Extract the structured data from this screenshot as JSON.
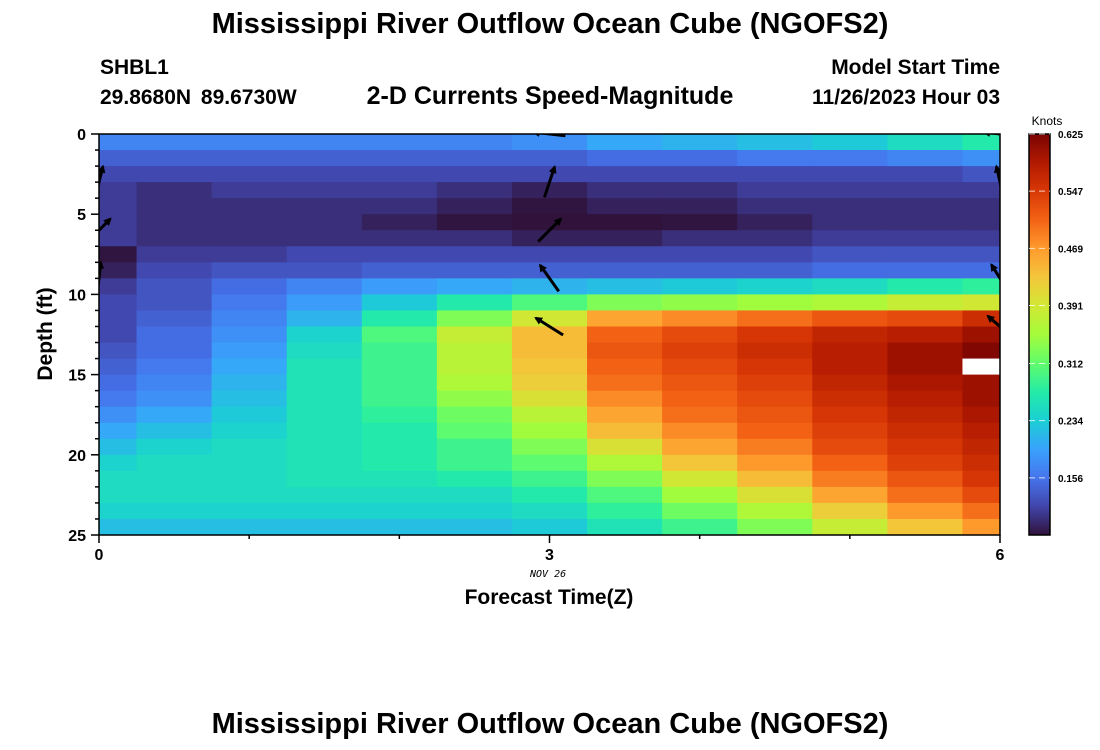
{
  "header": {
    "title": "Mississippi River Outflow Ocean Cube (NGOFS2)",
    "station_id": "SHBL1",
    "coordinates": "29.8680N  89.6730W",
    "subtitle": "2-D Currents Speed-Magnitude",
    "start_label": "Model Start Time",
    "start_value": "11/26/2023 Hour 03"
  },
  "footer": {
    "title": "Mississippi River Outflow Ocean Cube (NGOFS2)"
  },
  "colors": {
    "scale": [
      "#30123b",
      "#4145ab",
      "#4675ed",
      "#39a2fc",
      "#1bcfd4",
      "#24eca6",
      "#61fc6c",
      "#a4fc3b",
      "#d1e834",
      "#f3c63a",
      "#fe9b2d",
      "#f36315",
      "#d93806",
      "#b11901",
      "#7a0402"
    ]
  },
  "chart_data": {
    "type": "heatmap",
    "title": "2-D Currents Speed-Magnitude",
    "xlabel": "Forecast Time(Z)",
    "ylabel": "Depth (ft)",
    "date_label": "NOV 26",
    "xlim": [
      0,
      6
    ],
    "ylim": [
      0,
      25
    ],
    "x_ticks": [
      0,
      3,
      6
    ],
    "y_ticks": [
      0,
      5,
      10,
      15,
      20,
      25
    ],
    "colorbar": {
      "title": "Knots",
      "range": [
        0.078,
        0.625
      ],
      "ticks": [
        0.156,
        0.234,
        0.312,
        0.391,
        0.469,
        0.547,
        0.625
      ],
      "tick_labels": [
        "0.156",
        "0.234",
        "0.312",
        "0.391",
        "0.469",
        "0.547",
        "0.625"
      ]
    },
    "time_columns": [
      0,
      0.5,
      1,
      1.5,
      2,
      2.5,
      3,
      3.5,
      4,
      4.5,
      5,
      5.5,
      6
    ],
    "depth_rows_ft": [
      0.5,
      1.5,
      2.5,
      3.5,
      4.5,
      5.5,
      6.5,
      7.5,
      8.5,
      9.5,
      10.5,
      11.5,
      12.5,
      13.5,
      14.5,
      15.5,
      16.5,
      17.5,
      18.5,
      19.5,
      20.5,
      21.5,
      22.5,
      23.5,
      24.5
    ],
    "speed_knots": [
      [
        0.17,
        0.17,
        0.17,
        0.17,
        0.17,
        0.17,
        0.18,
        0.2,
        0.21,
        0.22,
        0.23,
        0.25,
        0.27
      ],
      [
        0.14,
        0.14,
        0.14,
        0.14,
        0.14,
        0.14,
        0.14,
        0.15,
        0.15,
        0.16,
        0.16,
        0.17,
        0.18
      ],
      [
        0.12,
        0.12,
        0.12,
        0.12,
        0.12,
        0.12,
        0.12,
        0.12,
        0.12,
        0.12,
        0.12,
        0.12,
        0.13
      ],
      [
        0.11,
        0.1,
        0.11,
        0.11,
        0.11,
        0.1,
        0.09,
        0.1,
        0.1,
        0.11,
        0.11,
        0.11,
        0.11
      ],
      [
        0.11,
        0.1,
        0.1,
        0.1,
        0.1,
        0.09,
        0.08,
        0.09,
        0.09,
        0.1,
        0.1,
        0.1,
        0.1
      ],
      [
        0.11,
        0.1,
        0.1,
        0.1,
        0.09,
        0.08,
        0.07,
        0.07,
        0.08,
        0.09,
        0.1,
        0.1,
        0.1
      ],
      [
        0.11,
        0.1,
        0.1,
        0.1,
        0.1,
        0.1,
        0.09,
        0.09,
        0.1,
        0.1,
        0.11,
        0.11,
        0.11
      ],
      [
        0.08,
        0.11,
        0.11,
        0.12,
        0.12,
        0.12,
        0.12,
        0.12,
        0.12,
        0.12,
        0.13,
        0.13,
        0.13
      ],
      [
        0.09,
        0.12,
        0.13,
        0.13,
        0.14,
        0.14,
        0.14,
        0.14,
        0.14,
        0.14,
        0.15,
        0.15,
        0.15
      ],
      [
        0.11,
        0.13,
        0.15,
        0.17,
        0.19,
        0.2,
        0.21,
        0.22,
        0.23,
        0.24,
        0.25,
        0.27,
        0.28
      ],
      [
        0.12,
        0.13,
        0.16,
        0.19,
        0.23,
        0.27,
        0.3,
        0.33,
        0.34,
        0.35,
        0.36,
        0.38,
        0.39
      ],
      [
        0.12,
        0.14,
        0.17,
        0.21,
        0.27,
        0.33,
        0.39,
        0.46,
        0.48,
        0.5,
        0.52,
        0.53,
        0.56
      ],
      [
        0.12,
        0.15,
        0.18,
        0.24,
        0.3,
        0.38,
        0.44,
        0.51,
        0.53,
        0.55,
        0.57,
        0.58,
        0.6
      ],
      [
        0.13,
        0.15,
        0.19,
        0.25,
        0.29,
        0.37,
        0.44,
        0.52,
        0.54,
        0.56,
        0.58,
        0.6,
        0.62
      ],
      [
        0.14,
        0.16,
        0.2,
        0.26,
        0.29,
        0.37,
        0.43,
        0.51,
        0.53,
        0.55,
        0.58,
        0.6,
        null
      ],
      [
        0.15,
        0.17,
        0.21,
        0.26,
        0.29,
        0.36,
        0.42,
        0.5,
        0.52,
        0.54,
        0.57,
        0.59,
        0.6
      ],
      [
        0.16,
        0.18,
        0.22,
        0.26,
        0.29,
        0.34,
        0.4,
        0.48,
        0.51,
        0.53,
        0.56,
        0.58,
        0.6
      ],
      [
        0.18,
        0.2,
        0.23,
        0.26,
        0.28,
        0.32,
        0.37,
        0.46,
        0.5,
        0.52,
        0.55,
        0.57,
        0.59
      ],
      [
        0.2,
        0.22,
        0.24,
        0.26,
        0.27,
        0.31,
        0.35,
        0.44,
        0.48,
        0.51,
        0.54,
        0.56,
        0.58
      ],
      [
        0.22,
        0.24,
        0.25,
        0.26,
        0.27,
        0.29,
        0.33,
        0.4,
        0.46,
        0.49,
        0.53,
        0.55,
        0.57
      ],
      [
        0.24,
        0.25,
        0.25,
        0.26,
        0.27,
        0.29,
        0.31,
        0.36,
        0.43,
        0.47,
        0.51,
        0.54,
        0.56
      ],
      [
        0.25,
        0.25,
        0.25,
        0.26,
        0.26,
        0.27,
        0.29,
        0.33,
        0.39,
        0.44,
        0.49,
        0.52,
        0.55
      ],
      [
        0.25,
        0.25,
        0.25,
        0.25,
        0.25,
        0.25,
        0.27,
        0.3,
        0.35,
        0.4,
        0.46,
        0.5,
        0.53
      ],
      [
        0.24,
        0.24,
        0.24,
        0.24,
        0.24,
        0.24,
        0.25,
        0.28,
        0.32,
        0.36,
        0.42,
        0.47,
        0.5
      ],
      [
        0.22,
        0.22,
        0.22,
        0.22,
        0.22,
        0.22,
        0.23,
        0.26,
        0.29,
        0.33,
        0.38,
        0.43,
        0.47
      ]
    ],
    "direction_arrows": [
      {
        "time": 0,
        "depth_ft": 6.0,
        "u": 0.6,
        "v": 0.6
      },
      {
        "time": 0,
        "depth_ft": 9.0,
        "u": 0.1,
        "v": 0.9
      },
      {
        "time": 0,
        "depth_ft": 3.0,
        "u": 0.2,
        "v": 0.8
      },
      {
        "time": 3,
        "depth_ft": 3.0,
        "u": 0.3,
        "v": 0.9
      },
      {
        "time": 3,
        "depth_ft": 6.0,
        "u": 0.6,
        "v": 0.6
      },
      {
        "time": 3,
        "depth_ft": 9.0,
        "u": -0.5,
        "v": 0.7
      },
      {
        "time": 3,
        "depth_ft": 12.0,
        "u": -0.8,
        "v": 0.5
      },
      {
        "time": 3,
        "depth_ft": 0.0,
        "u": -0.9,
        "v": 0.1
      },
      {
        "time": 6,
        "depth_ft": 0.0,
        "u": -0.9,
        "v": 0.1
      },
      {
        "time": 6,
        "depth_ft": 3.0,
        "u": -0.2,
        "v": 0.9
      },
      {
        "time": 6,
        "depth_ft": 9.0,
        "u": -0.5,
        "v": 0.8
      },
      {
        "time": 6,
        "depth_ft": 12.0,
        "u": -0.7,
        "v": 0.6
      }
    ]
  }
}
